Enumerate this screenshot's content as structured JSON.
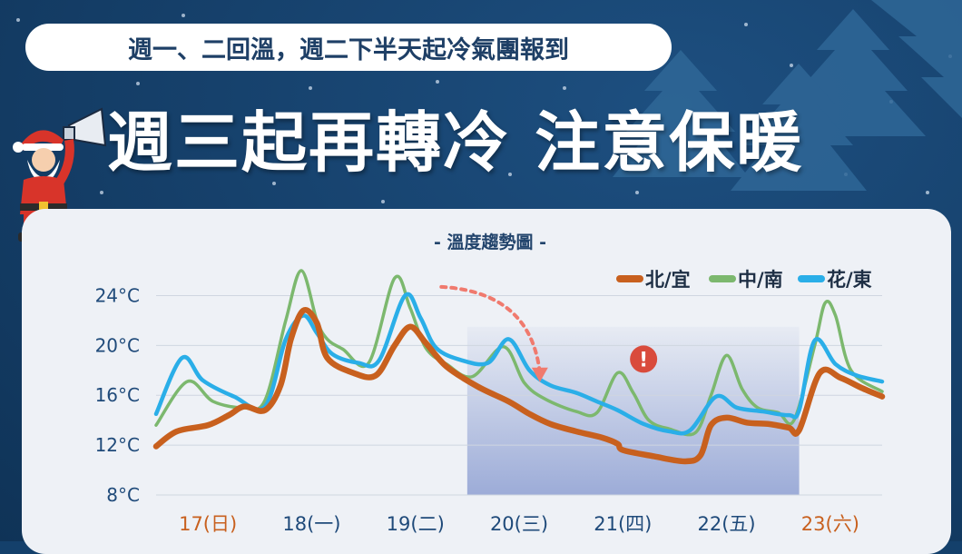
{
  "banner": {
    "subtitle": "週一、二回溫，週二下半天起冷氣團報到",
    "headline": "週三起再轉冷 注意保暖"
  },
  "colors": {
    "north": "#c8601e",
    "central_south": "#7cb86e",
    "hualien_taitung": "#2aaee8",
    "highlight_band": "#98a8d6",
    "warning": "#d94b3c"
  },
  "icons": [
    "megaphone-icon",
    "santa-icon",
    "christmas-tree-icon",
    "warning-icon",
    "trend-arrow-icon"
  ],
  "chart_data": {
    "type": "line",
    "title": "- 溫度趨勢圖 -",
    "y_tick_labels": [
      "24°C",
      "20°C",
      "16°C",
      "12°C",
      "8°C"
    ],
    "y_ticks": [
      24,
      20,
      16,
      12,
      8
    ],
    "ylim": [
      8,
      26
    ],
    "x_tick_labels": [
      "17(日)",
      "18(一)",
      "19(二)",
      "20(三)",
      "21(四)",
      "22(五)",
      "23(六)"
    ],
    "x_tick_colors": [
      "#c8601e",
      "#1f4a7a",
      "#1f4a7a",
      "#1f4a7a",
      "#1f4a7a",
      "#1f4a7a",
      "#c8601e"
    ],
    "xlim": [
      16.5,
      23.5
    ],
    "highlight_range": [
      19.5,
      22.7
    ],
    "legend_position": "top-right",
    "series": [
      {
        "name": "北/宜",
        "color": "#c8601e",
        "points": [
          [
            16.5,
            11.9
          ],
          [
            16.7,
            13.1
          ],
          [
            17.0,
            13.6
          ],
          [
            17.2,
            14.4
          ],
          [
            17.35,
            15.1
          ],
          [
            17.55,
            14.8
          ],
          [
            17.7,
            16.8
          ],
          [
            17.8,
            20.5
          ],
          [
            17.92,
            22.8
          ],
          [
            18.05,
            21.8
          ],
          [
            18.15,
            19.0
          ],
          [
            18.4,
            17.8
          ],
          [
            18.62,
            17.6
          ],
          [
            18.8,
            20.0
          ],
          [
            18.95,
            21.5
          ],
          [
            19.1,
            20.2
          ],
          [
            19.3,
            18.3
          ],
          [
            19.6,
            16.7
          ],
          [
            19.9,
            15.5
          ],
          [
            20.1,
            14.5
          ],
          [
            20.3,
            13.7
          ],
          [
            20.55,
            13.1
          ],
          [
            20.8,
            12.6
          ],
          [
            20.95,
            12.1
          ],
          [
            21.0,
            11.6
          ],
          [
            21.3,
            11.1
          ],
          [
            21.6,
            10.7
          ],
          [
            21.75,
            11.2
          ],
          [
            21.85,
            13.6
          ],
          [
            22.0,
            14.2
          ],
          [
            22.2,
            13.8
          ],
          [
            22.4,
            13.7
          ],
          [
            22.6,
            13.4
          ],
          [
            22.7,
            13.2
          ],
          [
            22.9,
            17.8
          ],
          [
            23.1,
            17.4
          ],
          [
            23.3,
            16.6
          ],
          [
            23.5,
            15.9
          ]
        ]
      },
      {
        "name": "中/南",
        "color": "#7cb86e",
        "points": [
          [
            16.5,
            13.6
          ],
          [
            16.8,
            17.1
          ],
          [
            17.05,
            15.5
          ],
          [
            17.35,
            15.0
          ],
          [
            17.55,
            15.6
          ],
          [
            17.75,
            22.0
          ],
          [
            17.9,
            26.0
          ],
          [
            18.05,
            22.0
          ],
          [
            18.15,
            20.5
          ],
          [
            18.3,
            19.7
          ],
          [
            18.55,
            18.6
          ],
          [
            18.8,
            25.4
          ],
          [
            18.95,
            23.0
          ],
          [
            19.1,
            19.8
          ],
          [
            19.3,
            18.5
          ],
          [
            19.55,
            17.5
          ],
          [
            19.85,
            19.9
          ],
          [
            20.05,
            17.0
          ],
          [
            20.25,
            15.7
          ],
          [
            20.55,
            14.7
          ],
          [
            20.75,
            14.6
          ],
          [
            20.95,
            17.8
          ],
          [
            21.1,
            16.2
          ],
          [
            21.25,
            14.0
          ],
          [
            21.45,
            13.3
          ],
          [
            21.7,
            13.0
          ],
          [
            21.85,
            16.0
          ],
          [
            22.0,
            19.2
          ],
          [
            22.15,
            16.5
          ],
          [
            22.3,
            15.0
          ],
          [
            22.5,
            14.6
          ],
          [
            22.65,
            14.0
          ],
          [
            22.85,
            20.0
          ],
          [
            22.95,
            23.4
          ],
          [
            23.05,
            22.4
          ],
          [
            23.2,
            18.0
          ],
          [
            23.5,
            16.3
          ]
        ]
      },
      {
        "name": "花/東",
        "color": "#2aaee8",
        "points": [
          [
            16.5,
            14.5
          ],
          [
            16.75,
            19.0
          ],
          [
            16.95,
            17.2
          ],
          [
            17.25,
            15.9
          ],
          [
            17.55,
            15.1
          ],
          [
            17.75,
            20.5
          ],
          [
            17.92,
            22.4
          ],
          [
            18.05,
            21.0
          ],
          [
            18.2,
            19.3
          ],
          [
            18.45,
            18.6
          ],
          [
            18.65,
            18.8
          ],
          [
            18.9,
            24.0
          ],
          [
            19.05,
            22.2
          ],
          [
            19.2,
            19.8
          ],
          [
            19.45,
            18.8
          ],
          [
            19.7,
            18.6
          ],
          [
            19.9,
            20.5
          ],
          [
            20.1,
            18.0
          ],
          [
            20.3,
            16.8
          ],
          [
            20.55,
            16.2
          ],
          [
            20.75,
            15.5
          ],
          [
            20.95,
            14.8
          ],
          [
            21.2,
            13.7
          ],
          [
            21.45,
            13.1
          ],
          [
            21.65,
            13.2
          ],
          [
            21.9,
            15.9
          ],
          [
            22.1,
            15.0
          ],
          [
            22.35,
            14.7
          ],
          [
            22.6,
            14.4
          ],
          [
            22.7,
            14.8
          ],
          [
            22.85,
            20.4
          ],
          [
            23.05,
            18.5
          ],
          [
            23.25,
            17.6
          ],
          [
            23.5,
            17.1
          ]
        ]
      }
    ],
    "annotations": [
      {
        "type": "arrow",
        "from": [
          19.25,
          24.7
        ],
        "to": [
          20.2,
          17.2
        ],
        "color": "#f07a6e"
      },
      {
        "type": "warning-marker",
        "at": [
          21.2,
          18.9
        ],
        "text": "!"
      }
    ]
  }
}
